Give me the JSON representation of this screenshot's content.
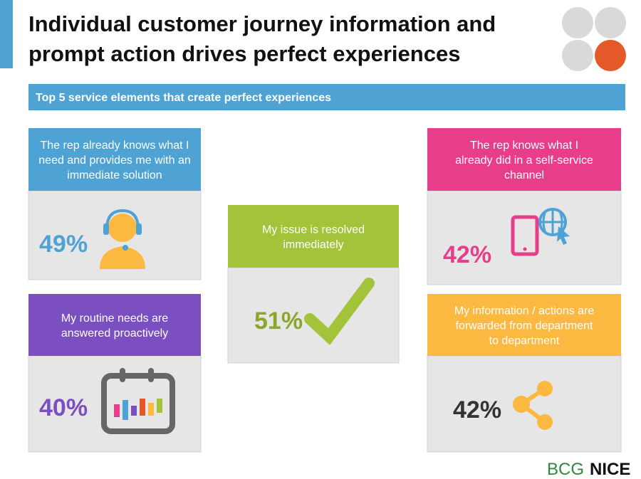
{
  "title_lines": [
    "Individual customer journey information and",
    "prompt action drives perfect experiences"
  ],
  "banner": "Top 5 service elements that create perfect experiences",
  "cards": [
    {
      "lines": [
        "The rep already knows what I",
        "need and provides me with an",
        "immediate solution"
      ],
      "value": "49%"
    },
    {
      "lines": [
        "My routine needs are",
        "answered proactively"
      ],
      "value": "40%"
    },
    {
      "lines": [
        "My issue is  resolved",
        "immediately"
      ],
      "value": "51%"
    },
    {
      "lines": [
        "The rep knows what I",
        "already did in a self-service",
        "channel"
      ],
      "value": "42%"
    },
    {
      "lines": [
        "My information / actions are",
        "forwarded from department",
        "to department"
      ],
      "value": "42%"
    }
  ],
  "logos": [
    "BCG",
    "NICE"
  ]
}
